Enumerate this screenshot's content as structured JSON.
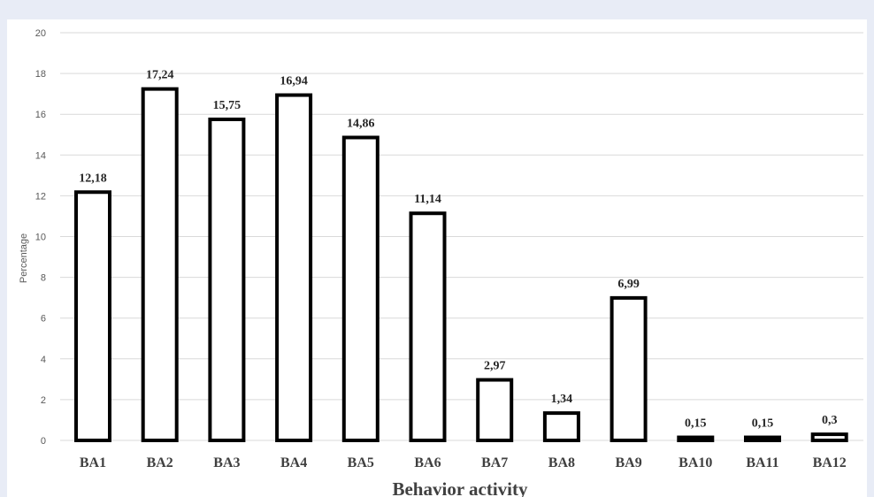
{
  "chart_data": {
    "type": "bar",
    "title": "",
    "xlabel": "Behavior activity",
    "ylabel": "Percentage",
    "ylim": [
      0,
      20
    ],
    "yticks": [
      0,
      2,
      4,
      6,
      8,
      10,
      12,
      14,
      16,
      18,
      20
    ],
    "grid": true,
    "legend": "none",
    "categories": [
      "BA1",
      "BA2",
      "BA3",
      "BA4",
      "BA5",
      "BA6",
      "BA7",
      "BA8",
      "BA9",
      "BA10",
      "BA11",
      "BA12"
    ],
    "values": [
      12.18,
      17.24,
      15.75,
      16.94,
      14.86,
      11.14,
      2.97,
      1.34,
      6.99,
      0.15,
      0.15,
      0.3
    ],
    "data_labels": [
      "12,18",
      "17,24",
      "15,75",
      "16,94",
      "14,86",
      "11,14",
      "2,97",
      "1,34",
      "6,99",
      "0,15",
      "0,15",
      "0,3"
    ],
    "colors": {
      "bar_fill": "#ffffff",
      "bar_stroke": "#000000",
      "grid": "#d9d9d9"
    }
  }
}
